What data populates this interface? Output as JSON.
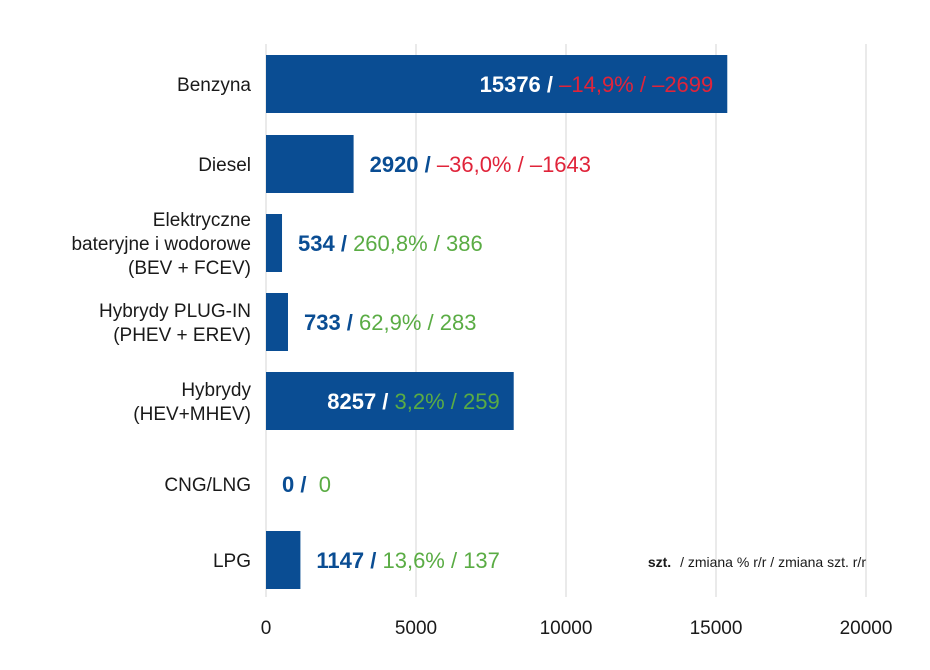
{
  "colors": {
    "bar": "#0a4d93",
    "grid": "#d6d6d6",
    "number_dark": "#0a4d93",
    "number_on_bar": "#ffffff",
    "negative": "#e0243a",
    "positive": "#5aac44",
    "text": "#1a1a1a"
  },
  "chart_data": {
    "type": "bar",
    "orientation": "horizontal",
    "categories": [
      [
        "Benzyna"
      ],
      [
        "Diesel"
      ],
      [
        "Elektryczne",
        "bateryjne i wodorowe",
        "(BEV + FCEV)"
      ],
      [
        "Hybrydy PLUG-IN",
        "(PHEV + EREV)"
      ],
      [
        "Hybrydy",
        "(HEV+MHEV)"
      ],
      [
        "CNG/LNG"
      ],
      [
        "LPG"
      ]
    ],
    "values": [
      15376,
      2920,
      534,
      733,
      8257,
      0,
      1147
    ],
    "change_pct": [
      "–14,9%",
      "–36,0%",
      "260,8%",
      "62,9%",
      "3,2%",
      "",
      "13,6%"
    ],
    "change_units": [
      "–2699",
      "–1643",
      "386",
      "283",
      "259",
      "0",
      "137"
    ],
    "change_sign": [
      "neg",
      "neg",
      "pos",
      "pos",
      "pos",
      "pos",
      "pos"
    ],
    "label_inside_bar": [
      true,
      false,
      false,
      false,
      true,
      false,
      false
    ],
    "xlim": [
      0,
      20000
    ],
    "xticks": [
      0,
      5000,
      10000,
      15000,
      20000
    ],
    "grid": true,
    "legend_bold": "szt.",
    "legend_rest": "/ zmiana % r/r / zmiana szt. r/r"
  }
}
